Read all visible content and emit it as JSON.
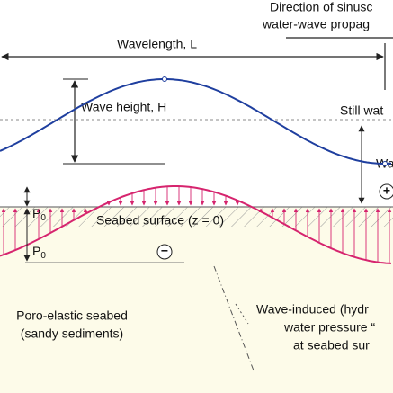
{
  "direction": [
    "Direction of sinusc",
    "water-wave propag"
  ],
  "wavelength": "Wavelength, L",
  "wave_height": "Wave height, H",
  "still_water": "Still wat",
  "water_depth": "Wa",
  "p0_top": {
    "main": "P",
    "sub": "0"
  },
  "p0_bottom": {
    "main": "P",
    "sub": "0"
  },
  "seabed_surface": "Seabed surface (z = 0)",
  "plus_sign": "+",
  "minus_sign": "−",
  "seabed": [
    "Poro-elastic seabed",
    "(sandy sediments)"
  ],
  "pressure": [
    "Wave-induced (hydr",
    "water pressure “",
    "at seabed sur"
  ]
}
